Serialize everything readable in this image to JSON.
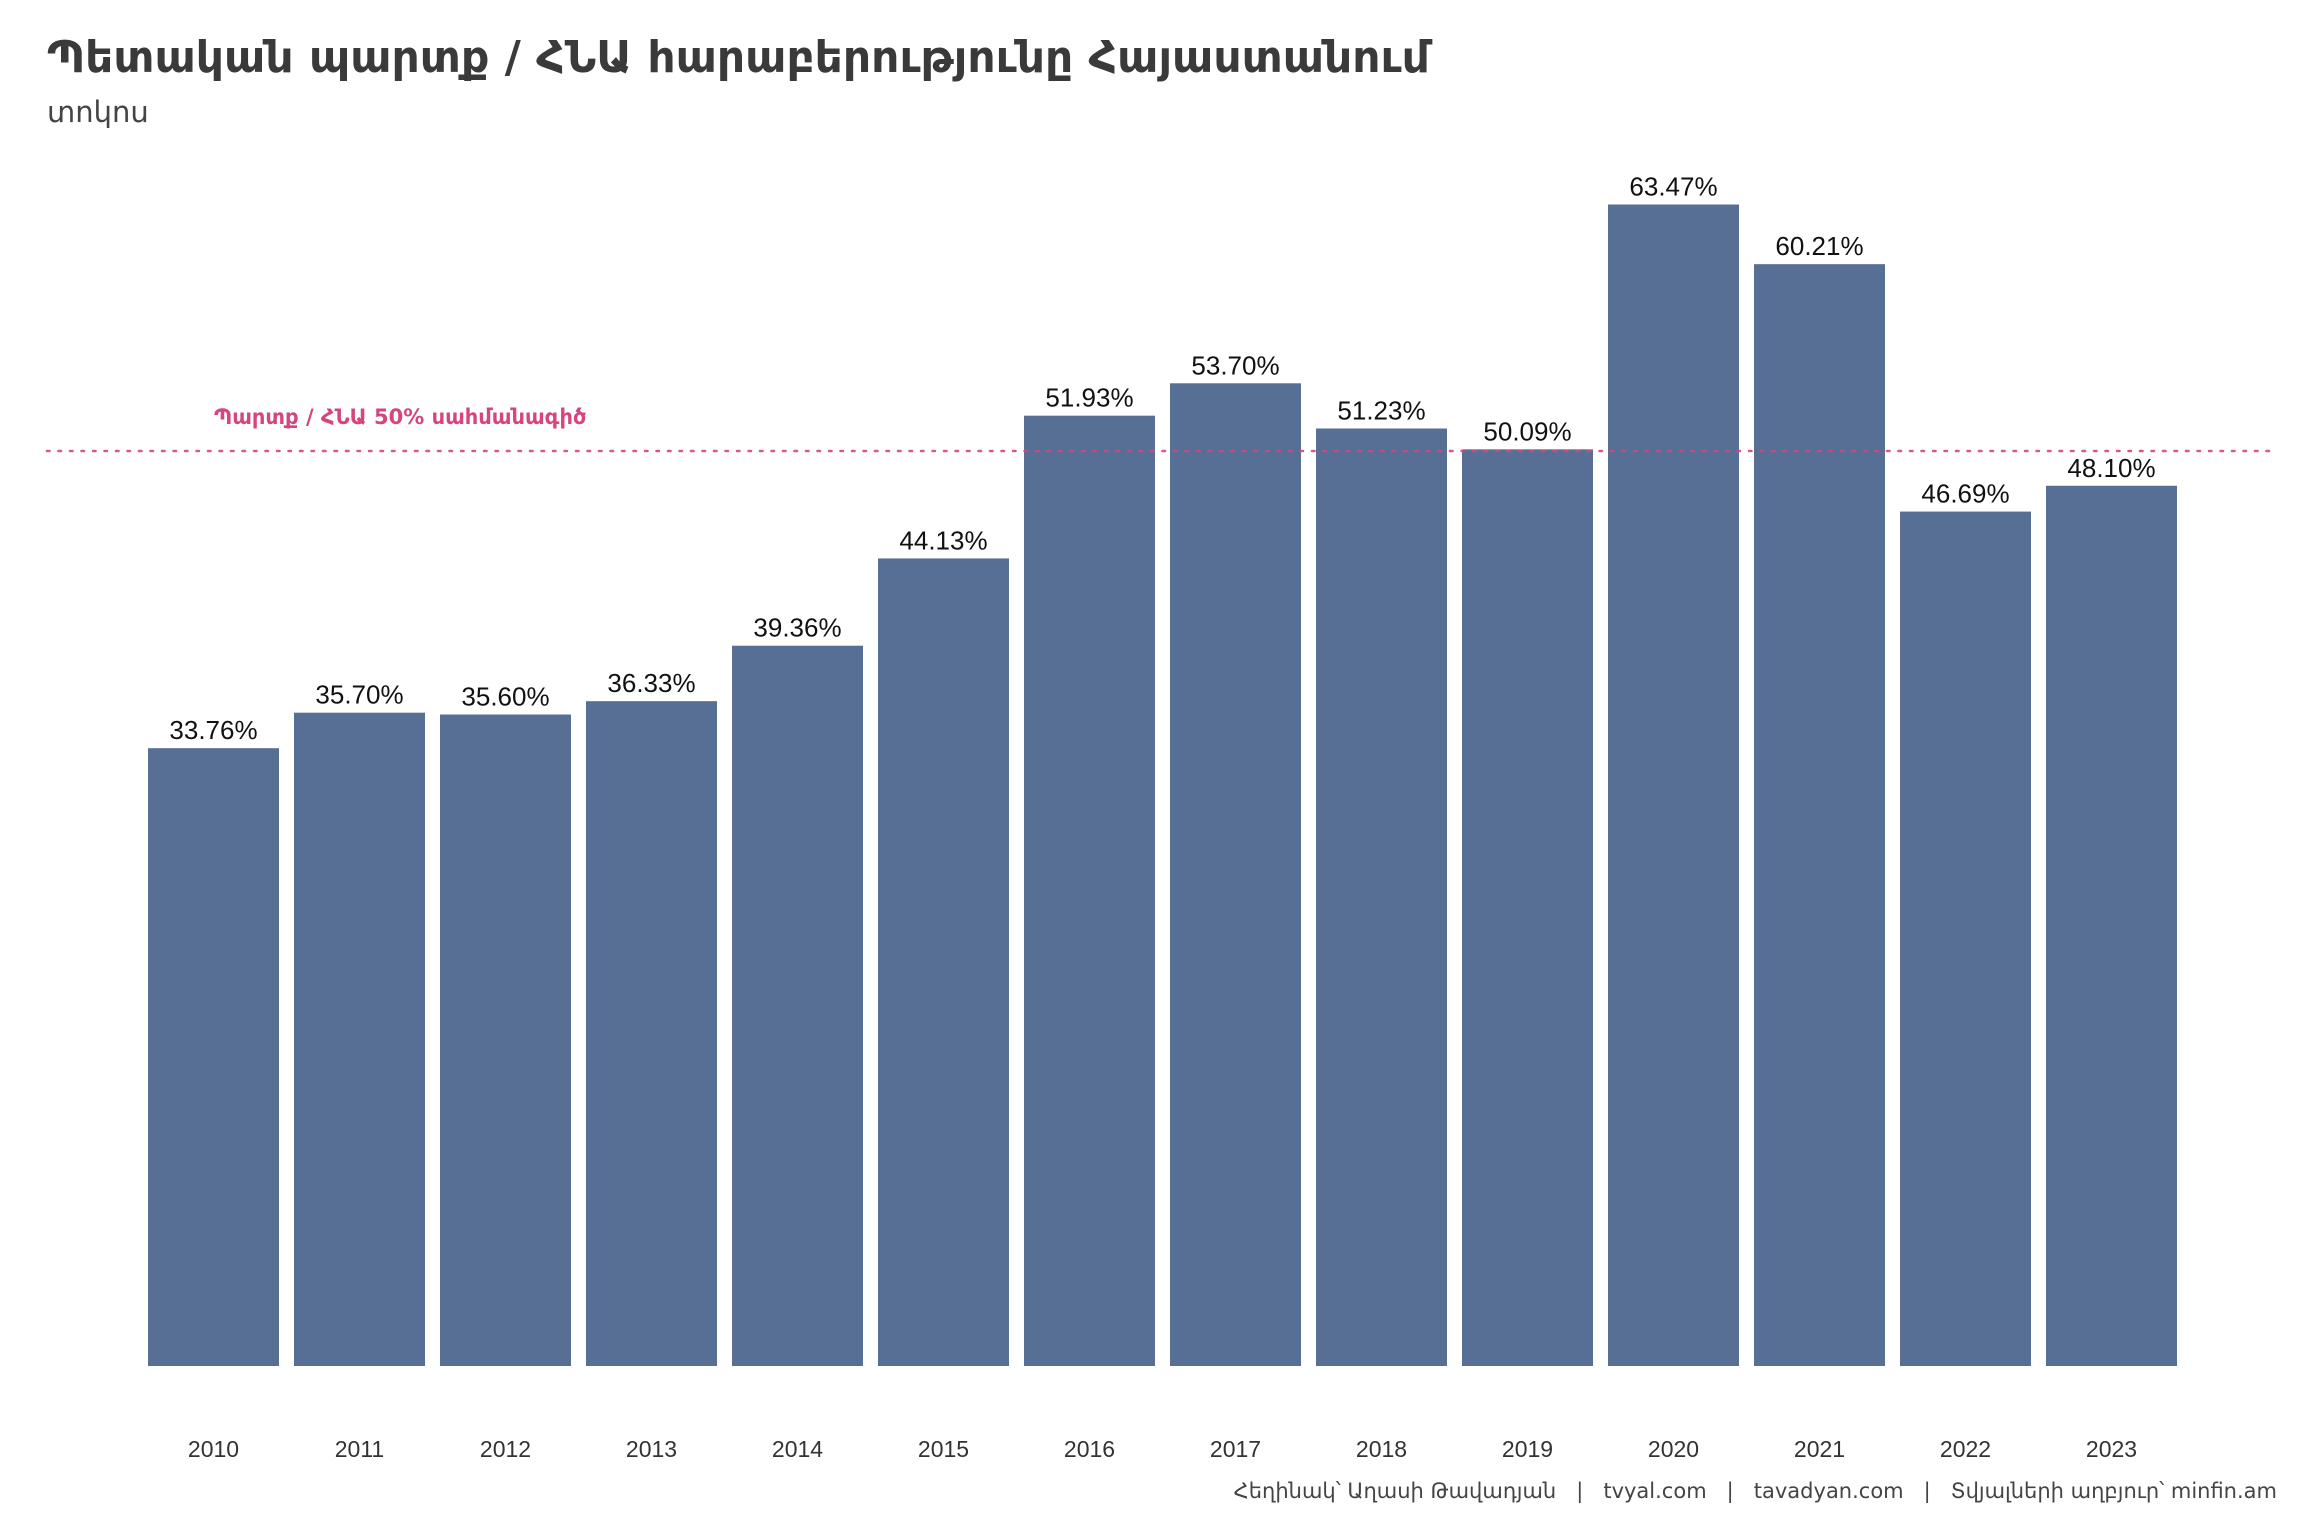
{
  "chart_data": {
    "type": "bar",
    "title": "Պետական պարտք / ՀՆԱ հարաբերությունը Հայաստանում",
    "subtitle": "տոկոս",
    "categories": [
      "2010",
      "2011",
      "2012",
      "2013",
      "2014",
      "2015",
      "2016",
      "2017",
      "2018",
      "2019",
      "2020",
      "2021",
      "2022",
      "2023"
    ],
    "values": [
      33.76,
      35.7,
      35.6,
      36.33,
      39.36,
      44.13,
      51.93,
      53.7,
      51.23,
      50.09,
      63.47,
      60.21,
      46.69,
      48.1
    ],
    "value_labels": [
      "33.76%",
      "35.70%",
      "35.60%",
      "36.33%",
      "39.36%",
      "44.13%",
      "51.93%",
      "53.70%",
      "51.23%",
      "50.09%",
      "63.47%",
      "60.21%",
      "46.69%",
      "48.10%"
    ],
    "ylim": [
      0,
      70
    ],
    "grid": false,
    "reference_line": {
      "value": 50,
      "label": "Պարտք / ՀՆԱ 50% սահմանագիծ",
      "color": "#d6457f"
    },
    "bar_color": "#586f95",
    "caption": "Հեղինակ՝ Աղասի Թավադյան   |   tvyal.com   |   tavadyan.com   |   Տվյալների աղբյուր՝ minfin.am"
  }
}
